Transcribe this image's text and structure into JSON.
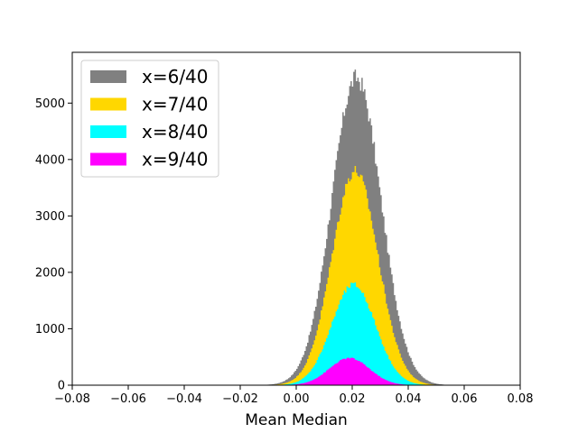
{
  "chart_data": {
    "type": "histogram",
    "title": "",
    "xlabel": "Mean Median",
    "ylabel": "",
    "xlim": [
      -0.08,
      0.08
    ],
    "ylim": [
      0,
      5900
    ],
    "x_ticks": [
      -0.08,
      -0.06,
      -0.04,
      -0.02,
      0.0,
      0.02,
      0.04,
      0.06,
      0.08
    ],
    "x_tick_labels": [
      "−0.08",
      "−0.06",
      "−0.04",
      "−0.02",
      "0.00",
      "0.02",
      "0.04",
      "0.06",
      "0.08"
    ],
    "y_ticks": [
      0,
      1000,
      2000,
      3000,
      4000,
      5000
    ],
    "y_tick_labels": [
      "0",
      "1000",
      "2000",
      "3000",
      "4000",
      "5000"
    ],
    "grid": false,
    "legend_position": "top-left",
    "series": [
      {
        "name": "x=6/40",
        "color": "#808080",
        "center": 0.0215,
        "peak": 5450,
        "spread": 0.0088,
        "x_min": -0.012,
        "x_max": 0.055
      },
      {
        "name": "x=7/40",
        "color": "#ffd700",
        "center": 0.021,
        "peak": 3800,
        "spread": 0.0082,
        "x_min": -0.008,
        "x_max": 0.05
      },
      {
        "name": "x=8/40",
        "color": "#00ffff",
        "center": 0.0205,
        "peak": 1780,
        "spread": 0.0078,
        "x_min": -0.005,
        "x_max": 0.047
      },
      {
        "name": "x=9/40",
        "color": "#ff00ff",
        "center": 0.019,
        "peak": 480,
        "spread": 0.0072,
        "x_min": -0.003,
        "x_max": 0.042
      }
    ]
  }
}
